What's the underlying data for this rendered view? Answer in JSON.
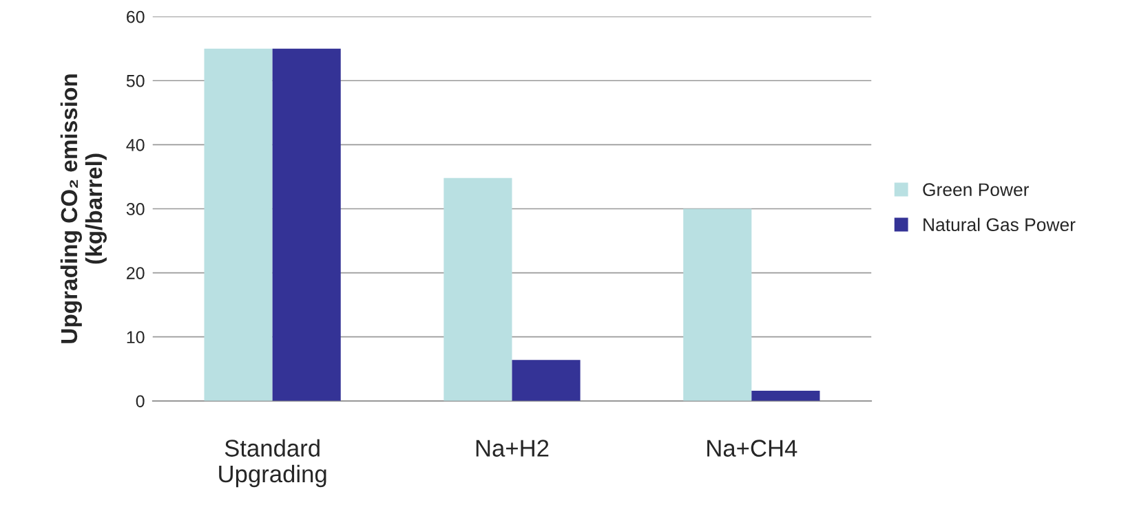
{
  "chart_data": {
    "type": "bar",
    "ylabel": "Upgrading CO₂ emission\n(kg/barrel)",
    "categories": [
      "Standard\nUpgrading",
      "Na+H2",
      "Na+CH4"
    ],
    "series": [
      {
        "name": "Green Power",
        "color": "#b9e0e2",
        "values": [
          55,
          34.8,
          30
        ]
      },
      {
        "name": "Natural Gas Power",
        "color": "#343396",
        "values": [
          55,
          6.4,
          1.6
        ]
      }
    ],
    "ylim": [
      0,
      60
    ],
    "yticks": [
      0,
      10,
      20,
      30,
      40,
      50,
      60
    ],
    "grid": "y",
    "legend": "right"
  }
}
